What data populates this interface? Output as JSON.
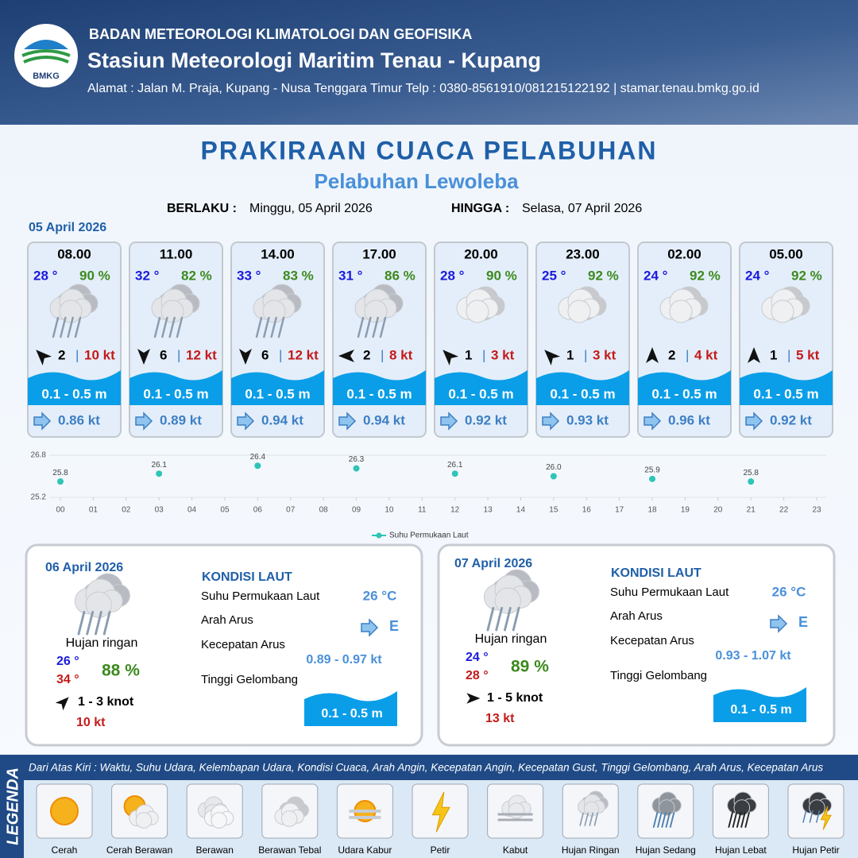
{
  "header": {
    "logo": "BMKG",
    "organization": "BADAN METEOROLOGI KLIMATOLOGI DAN GEOFISIKA",
    "station": "Stasiun Meteorologi Maritim Tenau - Kupang",
    "address": "Alamat : Jalan M. Praja, Kupang - Nusa Tenggara Timur Telp : 0380-8561910/081215122192  | stamar.tenau.bmkg.go.id"
  },
  "title": "PRAKIRAAN CUACA PELABUHAN",
  "subtitle": "Pelabuhan Lewoleba",
  "validity": {
    "from_label": "BERLAKU :",
    "from": "Minggu, 05 April 2026",
    "until_label": "HINGGA :",
    "until": "Selasa, 07 April 2026"
  },
  "day1_date": "05 April 2026",
  "cards": [
    {
      "time": "08.00",
      "temp": "28 °",
      "humidity": "90 %",
      "wind": "2",
      "gust": "10 kt",
      "wave": "0.1 - 0.5 m",
      "current": "0.86 kt"
    },
    {
      "time": "11.00",
      "temp": "32 °",
      "humidity": "82 %",
      "wind": "6",
      "gust": "12 kt",
      "wave": "0.1 - 0.5 m",
      "current": "0.89 kt"
    },
    {
      "time": "14.00",
      "temp": "33 °",
      "humidity": "83 %",
      "wind": "6",
      "gust": "12 kt",
      "wave": "0.1 - 0.5 m",
      "current": "0.94 kt"
    },
    {
      "time": "17.00",
      "temp": "31 °",
      "humidity": "86 %",
      "wind": "2",
      "gust": "8 kt",
      "wave": "0.1 - 0.5 m",
      "current": "0.94 kt"
    },
    {
      "time": "20.00",
      "temp": "28 °",
      "humidity": "90 %",
      "wind": "1",
      "gust": "3 kt",
      "wave": "0.1 - 0.5 m",
      "current": "0.92 kt"
    },
    {
      "time": "23.00",
      "temp": "25 °",
      "humidity": "92 %",
      "wind": "1",
      "gust": "3 kt",
      "wave": "0.1 - 0.5 m",
      "current": "0.93 kt"
    },
    {
      "time": "02.00",
      "temp": "24 °",
      "humidity": "92 %",
      "wind": "2",
      "gust": "4 kt",
      "wave": "0.1 - 0.5 m",
      "current": "0.96 kt"
    },
    {
      "time": "05.00",
      "temp": "24 °",
      "humidity": "92 %",
      "wind": "1",
      "gust": "5 kt",
      "wave": "0.1 - 0.5 m",
      "current": "0.92 kt"
    }
  ],
  "chart_data": {
    "type": "scatter",
    "x": [
      0,
      3,
      6,
      9,
      12,
      15,
      18,
      21
    ],
    "series": [
      {
        "name": "Suhu Permukaan Laut",
        "color": "#2ec4b6",
        "values": [
          25.8,
          26.1,
          26.4,
          26.3,
          26.1,
          26.0,
          25.9,
          25.8
        ],
        "value_labels": [
          "25.8",
          "26.1",
          "26.4",
          "26.3",
          "26.1",
          "26.0",
          "25.9",
          "25.8"
        ]
      }
    ],
    "xlim": [
      0,
      23
    ],
    "xticks": [
      {
        "value": 0,
        "label": "00"
      },
      {
        "value": 1,
        "label": "01"
      },
      {
        "value": 2,
        "label": "02"
      },
      {
        "value": 3,
        "label": "03"
      },
      {
        "value": 4,
        "label": "04"
      },
      {
        "value": 5,
        "label": "05"
      },
      {
        "value": 6,
        "label": "06"
      },
      {
        "value": 7,
        "label": "07"
      },
      {
        "value": 8,
        "label": "08"
      },
      {
        "value": 9,
        "label": "09"
      },
      10,
      11,
      12,
      13,
      14,
      15,
      16,
      17,
      18,
      19,
      20,
      21,
      22,
      23
    ],
    "ylim": [
      25.2,
      26.8
    ],
    "yticks": [
      25.2,
      26.8
    ],
    "grid": true
  },
  "days": [
    {
      "date": "06 April 2026",
      "condition": "Hujan ringan",
      "temp_min": "26 °",
      "temp_max": "34 °",
      "humidity": "88 %",
      "wind": "1  - 3 knot",
      "gust": "10 kt",
      "sea_title": "KONDISI LAUT",
      "sst_label": "Suhu Permukaan Laut",
      "sst": "26 °C",
      "current_dir_label": "Arah Arus",
      "current_dir": "E",
      "current_speed_label": "Kecepatan Arus",
      "current_speed": "0.89 - 0.97 kt",
      "wave_label": "Tinggi Gelombang",
      "wave": "0.1 - 0.5 m"
    },
    {
      "date": "07 April 2026",
      "condition": "Hujan ringan",
      "temp_min": "24 °",
      "temp_max": "28 °",
      "humidity": "89 %",
      "wind": "1  - 5 knot",
      "gust": "13 kt",
      "sea_title": "KONDISI LAUT",
      "sst_label": "Suhu Permukaan Laut",
      "sst": "26 °C",
      "current_dir_label": "Arah Arus",
      "current_dir": "E",
      "current_speed_label": "Kecepatan Arus",
      "current_speed": "0.93 - 1.07 kt",
      "wave_label": "Tinggi Gelombang",
      "wave": "0.1 - 0.5 m"
    }
  ],
  "legend": {
    "title": "LEGENDA",
    "description": "Dari Atas Kiri : Waktu, Suhu Udara, Kelembapan Udara, Kondisi Cuaca, Arah Angin, Kecepatan Angin, Kecepatan Gust, Tinggi Gelombang, Arah Arus, Kecepatan Arus",
    "items": [
      "Cerah",
      "Cerah Berawan",
      "Berawan",
      "Berawan Tebal",
      "Udara Kabur",
      "Petir",
      "Kabut",
      "Hujan Ringan",
      "Hujan Sedang",
      "Hujan Lebat",
      "Hujan Petir"
    ]
  }
}
